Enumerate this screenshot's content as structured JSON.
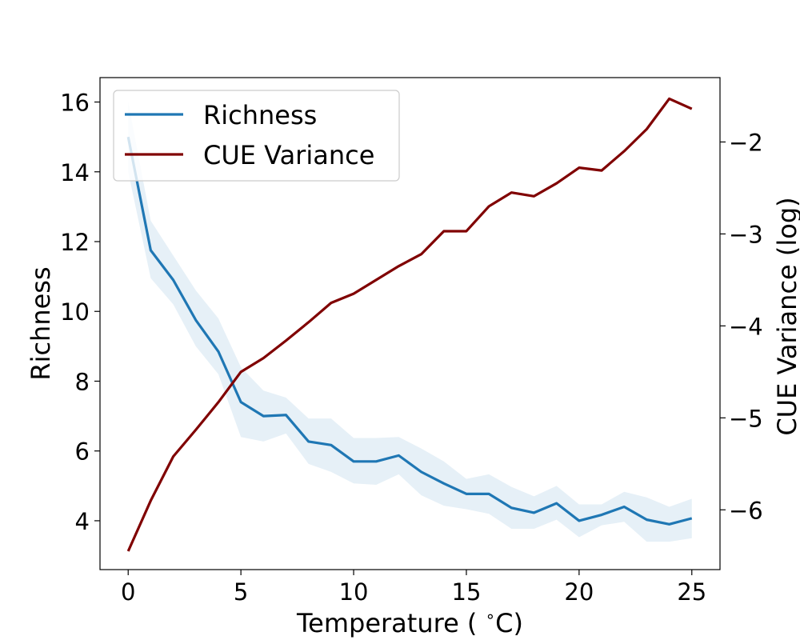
{
  "chart_data": {
    "type": "line",
    "xlabel": "Temperature ($^\\circ$C)",
    "ylabel": "Richness",
    "y2label": "CUE Variance (log)",
    "xlim": [
      -1.25,
      26.25
    ],
    "ylim": [
      2.6,
      16.7
    ],
    "y2lim": [
      -6.65,
      -1.3
    ],
    "xticks": [
      0,
      5,
      10,
      15,
      20,
      25
    ],
    "yticks": [
      4,
      6,
      8,
      10,
      12,
      14,
      16
    ],
    "y2ticks": [
      -6,
      -5,
      -4,
      -3,
      -2
    ],
    "xtick_labels": [
      "0",
      "5",
      "10",
      "15",
      "20",
      "25"
    ],
    "ytick_labels": [
      "4",
      "6",
      "8",
      "10",
      "12",
      "14",
      "16"
    ],
    "y2tick_labels": [
      "−6",
      "−5",
      "−4",
      "−3",
      "−2"
    ],
    "grid": false,
    "legend_position": "top-left",
    "x": [
      0,
      1,
      2,
      3,
      4,
      5,
      6,
      7,
      8,
      9,
      10,
      11,
      12,
      13,
      14,
      15,
      16,
      17,
      18,
      19,
      20,
      21,
      22,
      23,
      24,
      25
    ],
    "series": [
      {
        "name": "Richness",
        "axis": "left",
        "color": "#1f77b4",
        "values": [
          15.0,
          11.75,
          10.9,
          9.75,
          8.85,
          7.4,
          7.0,
          7.03,
          6.27,
          6.17,
          5.7,
          5.7,
          5.87,
          5.4,
          5.07,
          4.77,
          4.77,
          4.37,
          4.23,
          4.5,
          4.0,
          4.17,
          4.4,
          4.03,
          3.9,
          4.07
        ],
        "band_lower": [
          14.0,
          10.95,
          10.2,
          9.0,
          8.2,
          6.4,
          6.27,
          6.5,
          5.63,
          5.4,
          5.07,
          5.03,
          5.33,
          4.73,
          4.43,
          4.33,
          4.2,
          3.77,
          3.77,
          4.03,
          3.53,
          3.87,
          3.97,
          3.4,
          3.4,
          3.5
        ],
        "band_upper": [
          16.0,
          12.6,
          11.6,
          10.6,
          9.8,
          8.4,
          7.73,
          7.53,
          6.93,
          6.93,
          6.37,
          6.37,
          6.4,
          6.07,
          5.7,
          5.2,
          5.33,
          4.97,
          4.7,
          5.0,
          4.47,
          4.47,
          4.83,
          4.67,
          4.4,
          4.63
        ]
      },
      {
        "name": "CUE Variance",
        "axis": "right",
        "color": "#800000",
        "values": [
          -6.45,
          -5.9,
          -5.42,
          -5.13,
          -4.83,
          -4.5,
          -4.35,
          -4.16,
          -3.96,
          -3.75,
          -3.65,
          -3.5,
          -3.35,
          -3.22,
          -2.97,
          -2.97,
          -2.7,
          -2.55,
          -2.59,
          -2.45,
          -2.28,
          -2.31,
          -2.1,
          -1.86,
          -1.53,
          -1.64
        ]
      }
    ]
  }
}
